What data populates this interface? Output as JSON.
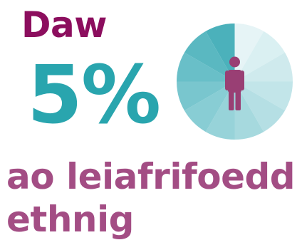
{
  "infographic": {
    "lead_text": "Daw",
    "percent_text": "5%",
    "description_line1": "ao leiafrifoedd",
    "description_line2": "ethnig",
    "highlight_share_percent": 5,
    "colors": {
      "lead": "#8c0e5e",
      "percent": "#29a5ae",
      "description": "#a34d84",
      "person_icon": "#993f74",
      "pie_sectors": [
        "#e6f4f6",
        "#daf0f2",
        "#cfeaed",
        "#c2e5e9",
        "#b5dfe4",
        "#a6d9de",
        "#97d3d9",
        "#88cdd4",
        "#79c6ce",
        "#69bfc8",
        "#5ab8c1",
        "#4bb1bb"
      ]
    },
    "icon": "person-icon"
  }
}
